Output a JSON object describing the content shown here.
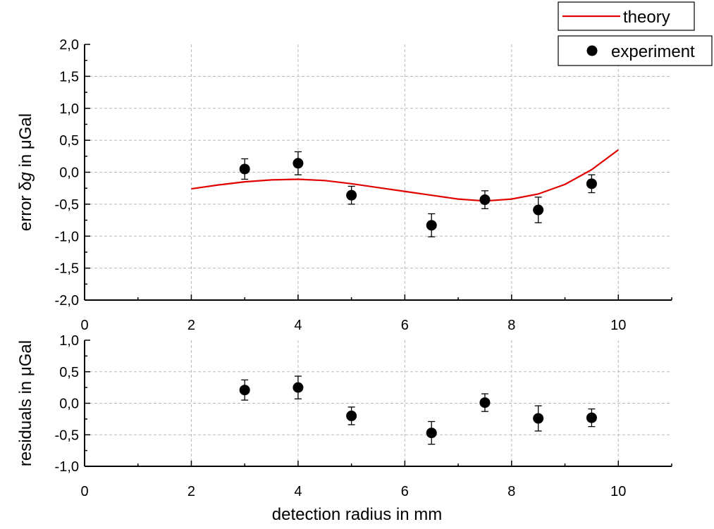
{
  "chart_data": [
    {
      "type": "scatter",
      "panel": "top",
      "ylabel_parts": [
        "error δ",
        "g",
        " in μGal"
      ],
      "xlim": [
        0,
        11
      ],
      "ylim": [
        -2.0,
        2.0
      ],
      "x_ticks": [
        0,
        2,
        4,
        6,
        8,
        10
      ],
      "x_tick_labels": [
        "0",
        "2",
        "4",
        "6",
        "8",
        "10"
      ],
      "y_ticks": [
        -2.0,
        -1.5,
        -1.0,
        -0.5,
        0.0,
        0.5,
        1.0,
        1.5,
        2.0
      ],
      "y_tick_labels": [
        "-2,0",
        "-1,5",
        "-1,0",
        "-0,5",
        "0,0",
        "0,5",
        "1,0",
        "1,5",
        "2,0"
      ],
      "grid": true,
      "legend_position": "top-right",
      "series": [
        {
          "name": "theory",
          "kind": "line",
          "color": "#e00000",
          "x": [
            2.0,
            2.5,
            3.0,
            3.5,
            4.0,
            4.5,
            5.0,
            5.5,
            6.0,
            6.5,
            7.0,
            7.5,
            8.0,
            8.5,
            9.0,
            9.5,
            10.0
          ],
          "y": [
            -0.26,
            -0.2,
            -0.15,
            -0.12,
            -0.11,
            -0.13,
            -0.18,
            -0.24,
            -0.3,
            -0.36,
            -0.42,
            -0.45,
            -0.42,
            -0.34,
            -0.19,
            0.04,
            0.35
          ]
        },
        {
          "name": "experiment",
          "kind": "points",
          "color": "#000000",
          "x": [
            3.0,
            4.0,
            5.0,
            6.5,
            7.5,
            8.5,
            9.5
          ],
          "y": [
            0.05,
            0.14,
            -0.36,
            -0.83,
            -0.43,
            -0.59,
            -0.18
          ],
          "yerr": [
            0.16,
            0.18,
            0.14,
            0.18,
            0.14,
            0.2,
            0.14
          ]
        }
      ]
    },
    {
      "type": "scatter",
      "panel": "bottom",
      "xlabel": "detection radius in mm",
      "ylabel": "residuals in μGal",
      "xlim": [
        0,
        11
      ],
      "ylim": [
        -1.0,
        1.0
      ],
      "x_ticks": [
        0,
        2,
        4,
        6,
        8,
        10
      ],
      "x_tick_labels": [
        "0",
        "2",
        "4",
        "6",
        "8",
        "10"
      ],
      "y_ticks": [
        -1.0,
        -0.5,
        0.0,
        0.5,
        1.0
      ],
      "y_tick_labels": [
        "-1,0",
        "-0,5",
        "0,0",
        "0,5",
        "1,0"
      ],
      "grid": true,
      "series": [
        {
          "kind": "points",
          "color": "#000000",
          "x": [
            3.0,
            4.0,
            5.0,
            6.5,
            7.5,
            8.5,
            9.5
          ],
          "y": [
            0.21,
            0.25,
            -0.2,
            -0.47,
            0.01,
            -0.24,
            -0.23
          ],
          "yerr": [
            0.16,
            0.18,
            0.14,
            0.18,
            0.14,
            0.2,
            0.14
          ]
        }
      ]
    }
  ]
}
